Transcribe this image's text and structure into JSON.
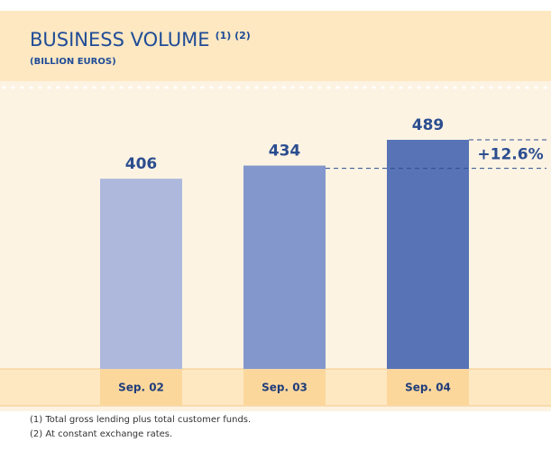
{
  "chart_data": {
    "type": "bar",
    "title": "BUSINESS VOLUME",
    "title_note": "(1) (2)",
    "subtitle": "(BILLION EUROS)",
    "categories": [
      "Sep. 02",
      "Sep. 03",
      "Sep. 04"
    ],
    "values": [
      406,
      434,
      489
    ],
    "colors": [
      "#adb8dc",
      "#8497cc",
      "#5874b6"
    ],
    "annotation": "+12.6%",
    "footnotes": [
      "(1)  Total gross lending plus total customer funds.",
      "(2)  At constant exchange rates."
    ]
  }
}
